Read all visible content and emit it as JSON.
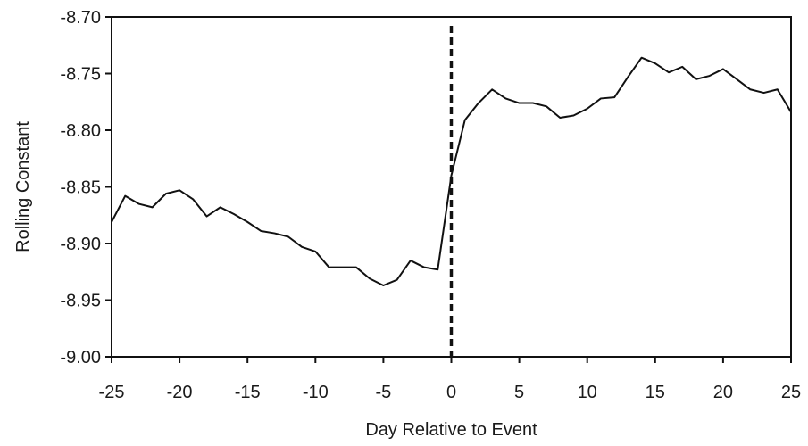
{
  "chart_data": {
    "type": "line",
    "title": "",
    "xlabel": "Day Relative to Event",
    "ylabel": "Rolling Constant",
    "xlim": [
      -25,
      25
    ],
    "ylim": [
      -9.0,
      -8.7
    ],
    "x_ticks": [
      -25,
      -20,
      -15,
      -10,
      -5,
      0,
      5,
      10,
      15,
      20,
      25
    ],
    "y_ticks": [
      -9.0,
      -8.95,
      -8.9,
      -8.85,
      -8.8,
      -8.75,
      -8.7
    ],
    "y_tick_labels": [
      "-9.00",
      "-8.95",
      "-8.90",
      "-8.85",
      "-8.80",
      "-8.75",
      "-8.70"
    ],
    "x_tick_labels": [
      "-25",
      "-20",
      "-15",
      "-10",
      "-5",
      "0",
      "5",
      "10",
      "15",
      "20",
      "25"
    ],
    "grid": false,
    "event_marker": {
      "x": 0,
      "style": "dashed"
    },
    "series": [
      {
        "x": [
          -25,
          -24,
          -23,
          -22,
          -21,
          -20,
          -19,
          -18,
          -17,
          -16,
          -15,
          -14,
          -13,
          -12,
          -11,
          -10,
          -9,
          -8,
          -7,
          -6,
          -5,
          -4,
          -3,
          -2,
          -1,
          0,
          1,
          2,
          3,
          4,
          5,
          6,
          7,
          8,
          9,
          10,
          11,
          12,
          13,
          14,
          15,
          16,
          17,
          18,
          19,
          20,
          21,
          22,
          23,
          24,
          25
        ],
        "values": [
          -8.881,
          -8.858,
          -8.865,
          -8.868,
          -8.856,
          -8.853,
          -8.861,
          -8.876,
          -8.868,
          -8.874,
          -8.881,
          -8.889,
          -8.891,
          -8.894,
          -8.903,
          -8.907,
          -8.921,
          -8.921,
          -8.921,
          -8.931,
          -8.937,
          -8.932,
          -8.915,
          -8.921,
          -8.923,
          -8.84,
          -8.791,
          -8.776,
          -8.764,
          -8.772,
          -8.776,
          -8.776,
          -8.779,
          -8.789,
          -8.787,
          -8.781,
          -8.772,
          -8.771,
          -8.753,
          -8.736,
          -8.741,
          -8.749,
          -8.744,
          -8.755,
          -8.752,
          -8.746,
          -8.755,
          -8.764,
          -8.767,
          -8.764,
          -8.784
        ],
        "color": "#111111"
      }
    ]
  }
}
